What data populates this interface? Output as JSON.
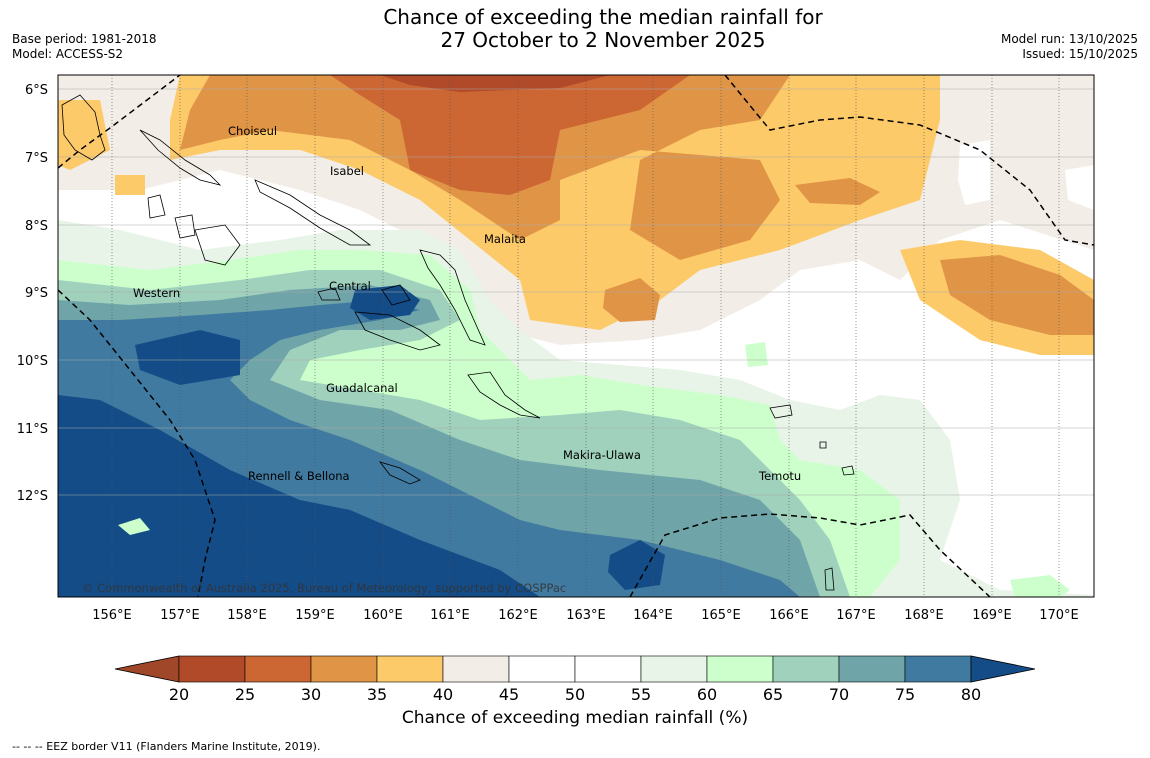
{
  "title_line1": "Chance of exceeding the median rainfall for",
  "title_line2": "27 October to 2 November 2025",
  "base_period": "Base period: 1981-2018",
  "model": "Model: ACCESS-S2",
  "model_run": "Model run: 13/10/2025",
  "issued": "Issued: 15/10/2025",
  "copyright": "© Commonwealth of Australia 2025, Bureau of Meteorology, supported by COSPPac",
  "lat_labels": [
    "6°S",
    "7°S",
    "8°S",
    "9°S",
    "10°S",
    "11°S",
    "12°S"
  ],
  "lon_labels": [
    "156°E",
    "157°E",
    "158°E",
    "159°E",
    "160°E",
    "161°E",
    "162°E",
    "163°E",
    "164°E",
    "165°E",
    "166°E",
    "167°E",
    "168°E",
    "169°E",
    "170°E"
  ],
  "regions": [
    {
      "name": "Choiseul"
    },
    {
      "name": "Isabel"
    },
    {
      "name": "Malaita"
    },
    {
      "name": "Western"
    },
    {
      "name": "Central"
    },
    {
      "name": "Guadalcanal"
    },
    {
      "name": "Makira-Ulawa"
    },
    {
      "name": "Temotu"
    },
    {
      "name": "Rennell & Bellona"
    }
  ],
  "colorbar": {
    "ticks": [
      "20",
      "25",
      "30",
      "35",
      "40",
      "45",
      "50",
      "55",
      "60",
      "65",
      "70",
      "75",
      "80"
    ],
    "colors": [
      "#a0472a",
      "#b04a28",
      "#cc6633",
      "#e09445",
      "#fdca6a",
      "#f2ede6",
      "#ffffff",
      "#ffffff",
      "#e8f4e8",
      "#ccffcc",
      "#9fd1bd",
      "#6fa5a8",
      "#417aa0",
      "#144c88"
    ],
    "title": "Chance of exceeding median rainfall (%)"
  },
  "legend_note": "--  --  -- EEZ border V11 (Flanders Marine Institute, 2019)."
}
